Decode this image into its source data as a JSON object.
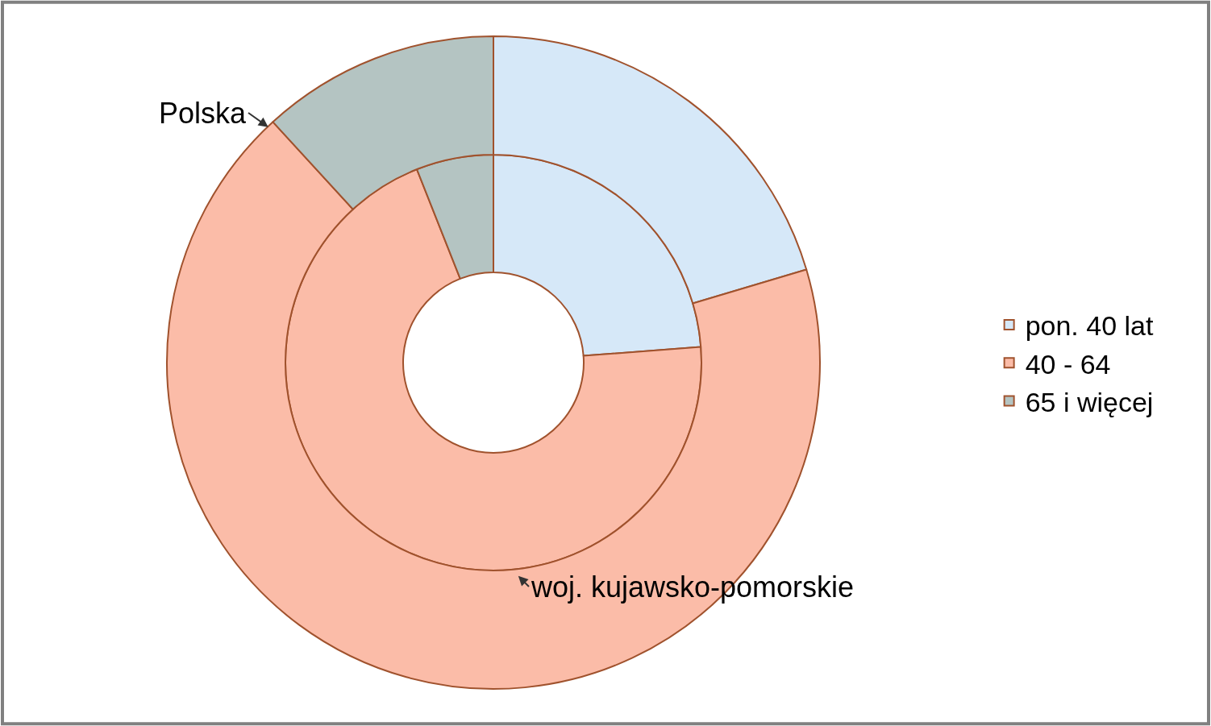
{
  "chart_data": {
    "type": "donut",
    "categories": [
      "pon. 40 lat",
      "40 - 64",
      "65 i więcej"
    ],
    "colors": [
      "#d6e8f8",
      "#fbbca8",
      "#b4c4c2"
    ],
    "series": [
      {
        "name": "Polska",
        "values": [
          20.4,
          67.8,
          11.8
        ]
      },
      {
        "name": "woj. kujawsko-pomorskie",
        "values": [
          23.8,
          70.2,
          6.0
        ]
      }
    ],
    "legend": "right"
  }
}
